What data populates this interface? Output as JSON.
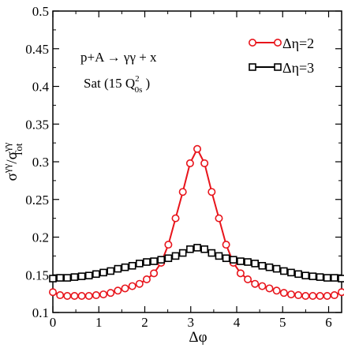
{
  "chart_data": {
    "type": "line",
    "title": "",
    "annotations": {
      "process": "p+A → γγ + x",
      "setting_prefix": "Sat (15 Q",
      "setting_sup": "2",
      "setting_sub": "0s",
      "setting_suffix": ")"
    },
    "xlabel": "Δφ",
    "ylabel": {
      "num": "σ",
      "num_sup": "γγ",
      "slash": "/σ",
      "den_sup": "γγ",
      "den_sub": "Tot"
    },
    "xlim": [
      0,
      6.283
    ],
    "ylim": [
      0.1,
      0.5
    ],
    "xticks": [
      0,
      1,
      2,
      3,
      4,
      5,
      6
    ],
    "xtick_labels": [
      "0",
      "1",
      "2",
      "3",
      "4",
      "5",
      "6"
    ],
    "yticks": [
      0.1,
      0.15,
      0.2,
      0.25,
      0.3,
      0.35,
      0.4,
      0.45,
      0.5
    ],
    "ytick_labels": [
      "0.1",
      "0.15",
      "0.2",
      "0.25",
      "0.3",
      "0.35",
      "0.4",
      "0.45",
      "0.5"
    ],
    "legend_position": "top-right",
    "grid": false,
    "series": [
      {
        "name": "Δη=2",
        "color": "#e8141b",
        "marker": "circle",
        "x": [
          0.0,
          0.157,
          0.314,
          0.471,
          0.628,
          0.785,
          0.942,
          1.1,
          1.257,
          1.414,
          1.571,
          1.728,
          1.885,
          2.042,
          2.199,
          2.356,
          2.513,
          2.67,
          2.827,
          2.985,
          3.142,
          3.299,
          3.456,
          3.613,
          3.77,
          3.927,
          4.084,
          4.241,
          4.398,
          4.555,
          4.712,
          4.869,
          5.027,
          5.184,
          5.341,
          5.498,
          5.655,
          5.812,
          5.969,
          6.126,
          6.283
        ],
        "y": [
          0.127,
          0.123,
          0.122,
          0.122,
          0.122,
          0.122,
          0.123,
          0.124,
          0.126,
          0.129,
          0.132,
          0.135,
          0.138,
          0.144,
          0.152,
          0.166,
          0.19,
          0.225,
          0.26,
          0.298,
          0.317,
          0.298,
          0.26,
          0.225,
          0.19,
          0.166,
          0.152,
          0.144,
          0.138,
          0.135,
          0.132,
          0.129,
          0.126,
          0.124,
          0.123,
          0.122,
          0.122,
          0.122,
          0.122,
          0.123,
          0.127
        ]
      },
      {
        "name": "Δη=3",
        "color": "#000000",
        "marker": "square",
        "x": [
          0.0,
          0.157,
          0.314,
          0.471,
          0.628,
          0.785,
          0.942,
          1.1,
          1.257,
          1.414,
          1.571,
          1.728,
          1.885,
          2.042,
          2.199,
          2.356,
          2.513,
          2.67,
          2.827,
          2.985,
          3.142,
          3.299,
          3.456,
          3.613,
          3.77,
          3.927,
          4.084,
          4.241,
          4.398,
          4.555,
          4.712,
          4.869,
          5.027,
          5.184,
          5.341,
          5.498,
          5.655,
          5.812,
          5.969,
          6.126,
          6.283
        ],
        "y": [
          0.145,
          0.146,
          0.146,
          0.147,
          0.148,
          0.149,
          0.151,
          0.153,
          0.155,
          0.158,
          0.16,
          0.162,
          0.165,
          0.167,
          0.168,
          0.17,
          0.172,
          0.175,
          0.179,
          0.184,
          0.186,
          0.184,
          0.179,
          0.175,
          0.172,
          0.17,
          0.168,
          0.167,
          0.165,
          0.162,
          0.16,
          0.158,
          0.155,
          0.153,
          0.151,
          0.149,
          0.148,
          0.147,
          0.146,
          0.146,
          0.145
        ]
      }
    ]
  }
}
